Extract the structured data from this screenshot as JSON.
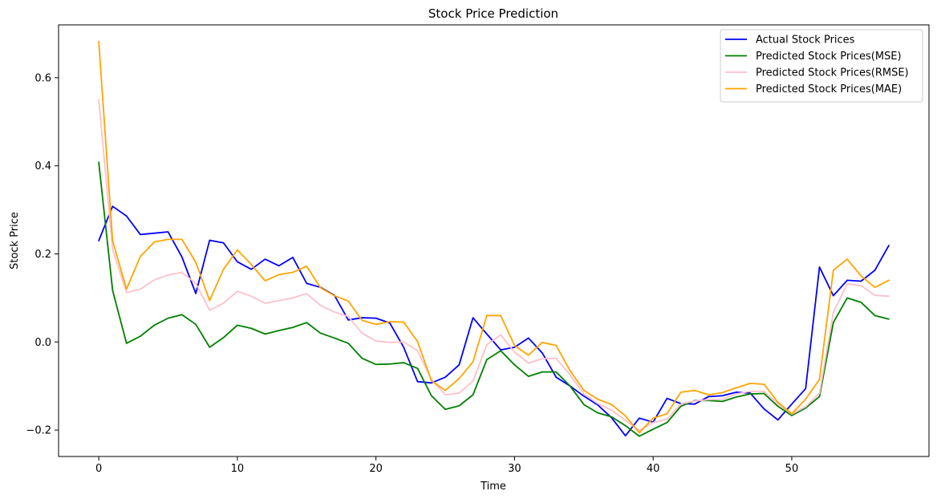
{
  "chart_data": {
    "type": "line",
    "title": "Stock Price Prediction",
    "xlabel": "Time",
    "ylabel": "Stock Price",
    "xlim": [
      -2.9,
      59.9
    ],
    "ylim": [
      -0.26,
      0.72
    ],
    "xticks": [
      0,
      10,
      20,
      30,
      40,
      50
    ],
    "yticks": [
      -0.2,
      0.0,
      0.2,
      0.4,
      0.6
    ],
    "xtick_labels": [
      "0",
      "10",
      "20",
      "30",
      "40",
      "50"
    ],
    "ytick_labels": [
      "−0.2",
      "0.0",
      "0.2",
      "0.4",
      "0.6"
    ],
    "grid": false,
    "legend_position": "top-right",
    "series": [
      {
        "name": "Actual Stock Prices",
        "color": "#0000ff",
        "values": [
          0.23,
          0.308,
          0.286,
          0.244,
          0.247,
          0.25,
          0.193,
          0.11,
          0.231,
          0.225,
          0.182,
          0.165,
          0.188,
          0.173,
          0.192,
          0.133,
          0.124,
          0.106,
          0.05,
          0.055,
          0.054,
          0.043,
          -0.012,
          -0.09,
          -0.093,
          -0.08,
          -0.052,
          0.055,
          0.018,
          -0.018,
          -0.012,
          0.009,
          -0.025,
          -0.08,
          -0.1,
          -0.123,
          -0.143,
          -0.172,
          -0.213,
          -0.173,
          -0.182,
          -0.128,
          -0.14,
          -0.141,
          -0.124,
          -0.122,
          -0.114,
          -0.116,
          -0.152,
          -0.177,
          -0.141,
          -0.106,
          0.17,
          0.105,
          0.14,
          0.138,
          0.163,
          0.219
        ]
      },
      {
        "name": "Predicted Stock Prices(MSE)",
        "color": "#008000",
        "values": [
          0.408,
          0.117,
          -0.003,
          0.013,
          0.038,
          0.054,
          0.062,
          0.04,
          -0.012,
          0.01,
          0.038,
          0.031,
          0.018,
          0.026,
          0.033,
          0.044,
          0.02,
          0.009,
          -0.003,
          -0.037,
          -0.051,
          -0.05,
          -0.047,
          -0.06,
          -0.122,
          -0.153,
          -0.145,
          -0.12,
          -0.04,
          -0.02,
          -0.052,
          -0.078,
          -0.068,
          -0.068,
          -0.1,
          -0.142,
          -0.161,
          -0.17,
          -0.19,
          -0.214,
          -0.198,
          -0.183,
          -0.146,
          -0.133,
          -0.133,
          -0.135,
          -0.125,
          -0.118,
          -0.117,
          -0.146,
          -0.167,
          -0.15,
          -0.124,
          0.044,
          0.1,
          0.09,
          0.06,
          0.052
        ]
      },
      {
        "name": "Predicted Stock Prices(RMSE)",
        "color": "#ffc0cb",
        "values": [
          0.55,
          0.21,
          0.112,
          0.12,
          0.141,
          0.152,
          0.158,
          0.133,
          0.072,
          0.088,
          0.115,
          0.104,
          0.088,
          0.094,
          0.1,
          0.11,
          0.083,
          0.068,
          0.058,
          0.02,
          0.002,
          -0.001,
          0.0,
          -0.02,
          -0.085,
          -0.12,
          -0.116,
          -0.089,
          -0.006,
          0.016,
          -0.023,
          -0.048,
          -0.038,
          -0.037,
          -0.075,
          -0.118,
          -0.14,
          -0.155,
          -0.178,
          -0.201,
          -0.183,
          -0.175,
          -0.141,
          -0.134,
          -0.131,
          -0.13,
          -0.118,
          -0.112,
          -0.112,
          -0.14,
          -0.164,
          -0.147,
          -0.117,
          0.067,
          0.132,
          0.128,
          0.106,
          0.104
        ]
      },
      {
        "name": "Predicted Stock Prices(MAE)",
        "color": "#ffa500",
        "values": [
          0.682,
          0.23,
          0.12,
          0.194,
          0.227,
          0.233,
          0.233,
          0.181,
          0.094,
          0.165,
          0.209,
          0.176,
          0.139,
          0.153,
          0.158,
          0.172,
          0.123,
          0.105,
          0.093,
          0.049,
          0.04,
          0.046,
          0.045,
          0.001,
          -0.088,
          -0.11,
          -0.083,
          -0.045,
          0.06,
          0.06,
          -0.008,
          -0.03,
          -0.001,
          -0.008,
          -0.065,
          -0.11,
          -0.13,
          -0.142,
          -0.168,
          -0.206,
          -0.173,
          -0.163,
          -0.114,
          -0.11,
          -0.12,
          -0.115,
          -0.104,
          -0.094,
          -0.096,
          -0.137,
          -0.163,
          -0.13,
          -0.085,
          0.163,
          0.188,
          0.15,
          0.124,
          0.14
        ]
      }
    ]
  }
}
